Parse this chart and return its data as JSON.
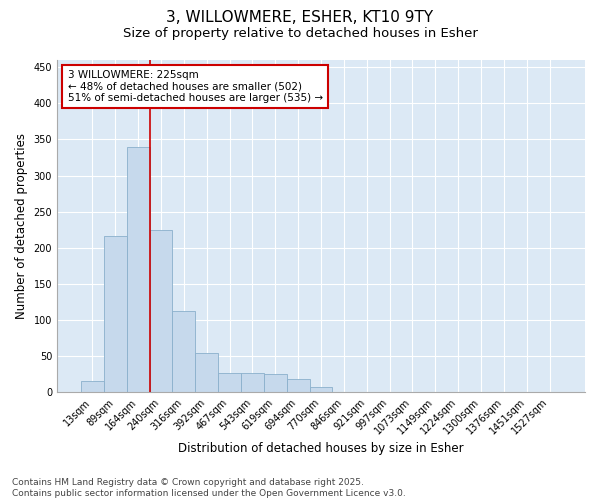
{
  "title_line1": "3, WILLOWMERE, ESHER, KT10 9TY",
  "title_line2": "Size of property relative to detached houses in Esher",
  "xlabel": "Distribution of detached houses by size in Esher",
  "ylabel": "Number of detached properties",
  "categories": [
    "13sqm",
    "89sqm",
    "164sqm",
    "240sqm",
    "316sqm",
    "392sqm",
    "467sqm",
    "543sqm",
    "619sqm",
    "694sqm",
    "770sqm",
    "846sqm",
    "921sqm",
    "997sqm",
    "1073sqm",
    "1149sqm",
    "1224sqm",
    "1300sqm",
    "1376sqm",
    "1451sqm",
    "1527sqm"
  ],
  "values": [
    15,
    217,
    339,
    224,
    113,
    54,
    27,
    26,
    25,
    19,
    7,
    0,
    0,
    0,
    0,
    0,
    0,
    0,
    0,
    0,
    0
  ],
  "bar_color": "#c6d9ec",
  "bar_edge_color": "#8ab0cc",
  "line_color": "#cc0000",
  "line_x_index": 3,
  "annotation_text": "3 WILLOWMERE: 225sqm\n← 48% of detached houses are smaller (502)\n51% of semi-detached houses are larger (535) →",
  "annotation_box_facecolor": "#ffffff",
  "annotation_box_edgecolor": "#cc0000",
  "ylim": [
    0,
    460
  ],
  "yticks": [
    0,
    50,
    100,
    150,
    200,
    250,
    300,
    350,
    400,
    450
  ],
  "background_color": "#ffffff",
  "plot_background_color": "#dce9f5",
  "grid_color": "#ffffff",
  "footer_line1": "Contains HM Land Registry data © Crown copyright and database right 2025.",
  "footer_line2": "Contains public sector information licensed under the Open Government Licence v3.0.",
  "title_fontsize": 11,
  "subtitle_fontsize": 9.5,
  "tick_fontsize": 7,
  "label_fontsize": 8.5,
  "annotation_fontsize": 7.5,
  "footer_fontsize": 6.5
}
